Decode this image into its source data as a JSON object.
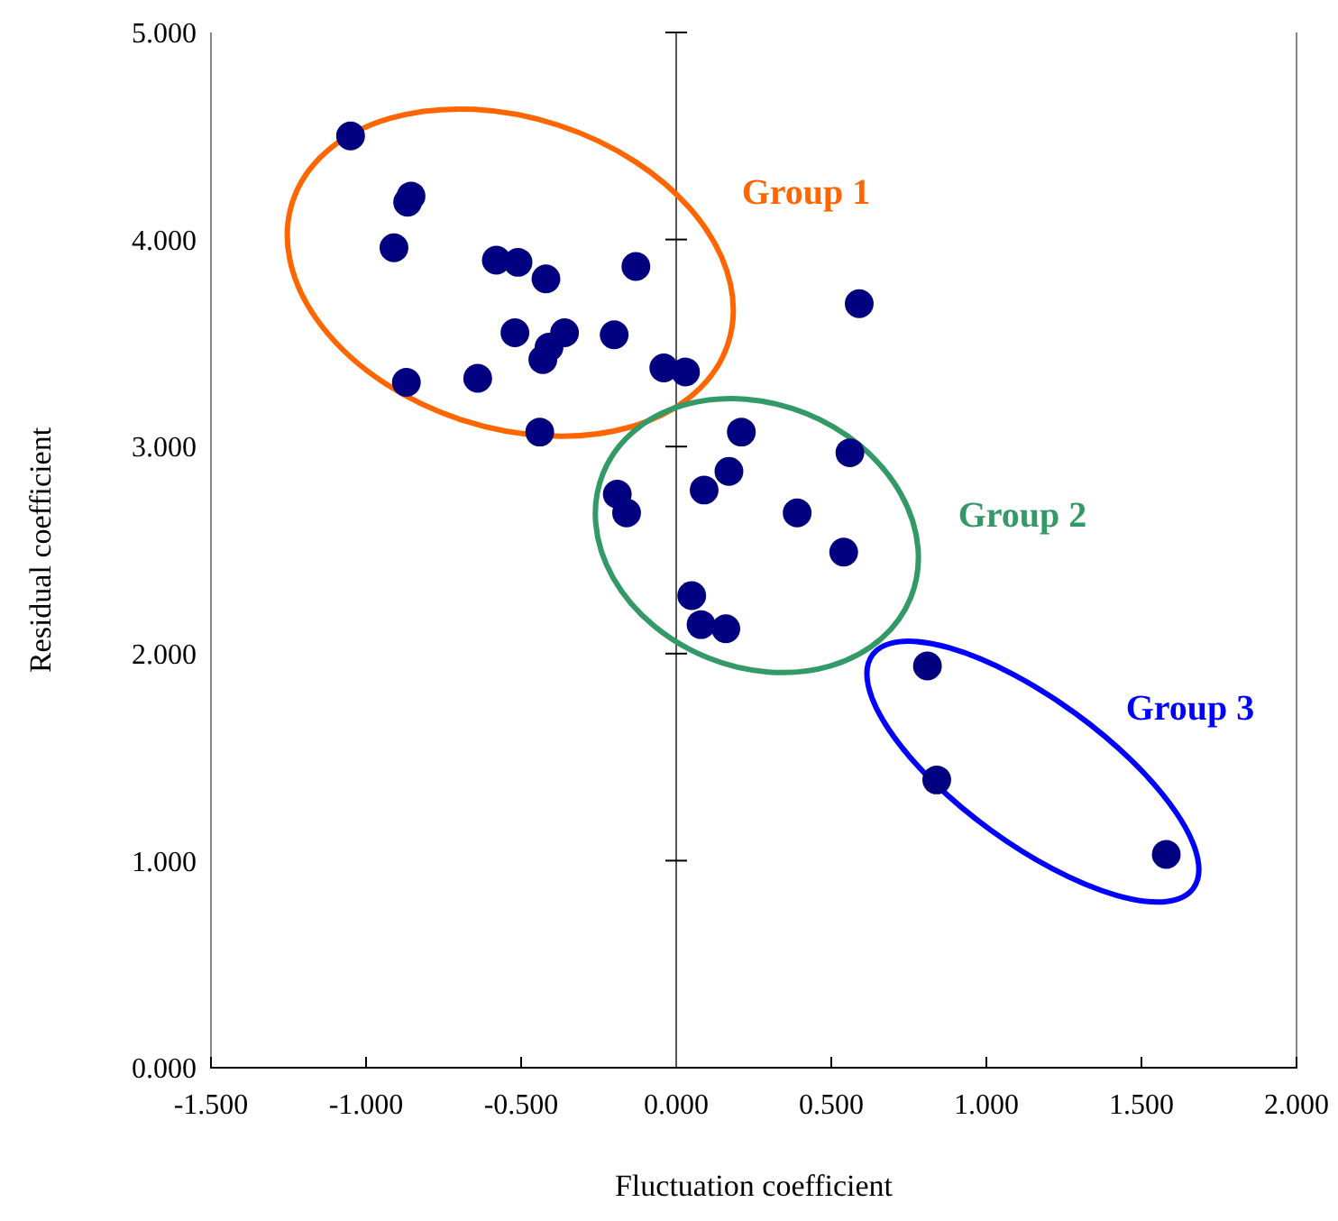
{
  "chart_data": {
    "type": "scatter",
    "xlabel": "Fluctuation coefficient",
    "ylabel": "Residual coefficient",
    "xlim": [
      -1.5,
      2
    ],
    "ylim": [
      0,
      5
    ],
    "xticks": [
      {
        "value": -1.5,
        "label": "-1.500"
      },
      {
        "value": -1,
        "label": "-1.000"
      },
      {
        "value": -0.5,
        "label": "-0.500"
      },
      {
        "value": 0,
        "label": "0.000"
      },
      {
        "value": 0.5,
        "label": "0.500"
      },
      {
        "value": 1,
        "label": "1.000"
      },
      {
        "value": 1.5,
        "label": "1.500"
      },
      {
        "value": 2,
        "label": "2.000"
      }
    ],
    "yticks": [
      {
        "value": 0,
        "label": "0.000"
      },
      {
        "value": 1,
        "label": "1.000"
      },
      {
        "value": 2,
        "label": "2.000"
      },
      {
        "value": 3,
        "label": "3.000"
      },
      {
        "value": 4,
        "label": "4.000"
      },
      {
        "value": 5,
        "label": "5.000"
      }
    ],
    "marker": "circle",
    "series": [
      {
        "color": "#000080",
        "x": [
          -1.05,
          -0.855,
          -0.866,
          -0.91,
          -0.58,
          -0.51,
          -0.42,
          -0.13,
          -0.52,
          -0.36,
          -0.41,
          -0.43,
          -0.2,
          -0.87,
          -0.64,
          -0.04,
          0.03,
          -0.44,
          0.59,
          0.21,
          0.56,
          0.17,
          0.09,
          -0.19,
          -0.16,
          0.39,
          0.54,
          0.05,
          0.08,
          0.16,
          0.81,
          0.84,
          1.58
        ],
        "values": [
          4.5,
          4.21,
          4.18,
          3.96,
          3.9,
          3.89,
          3.81,
          3.87,
          3.55,
          3.55,
          3.48,
          3.42,
          3.54,
          3.31,
          3.33,
          3.38,
          3.36,
          3.07,
          3.69,
          3.07,
          2.97,
          2.88,
          2.79,
          2.77,
          2.68,
          2.68,
          2.49,
          2.28,
          2.14,
          2.12,
          1.94,
          1.39,
          1.03
        ]
      }
    ],
    "annotations": [
      "Group 1",
      "Group 2",
      "Group 3"
    ]
  }
}
